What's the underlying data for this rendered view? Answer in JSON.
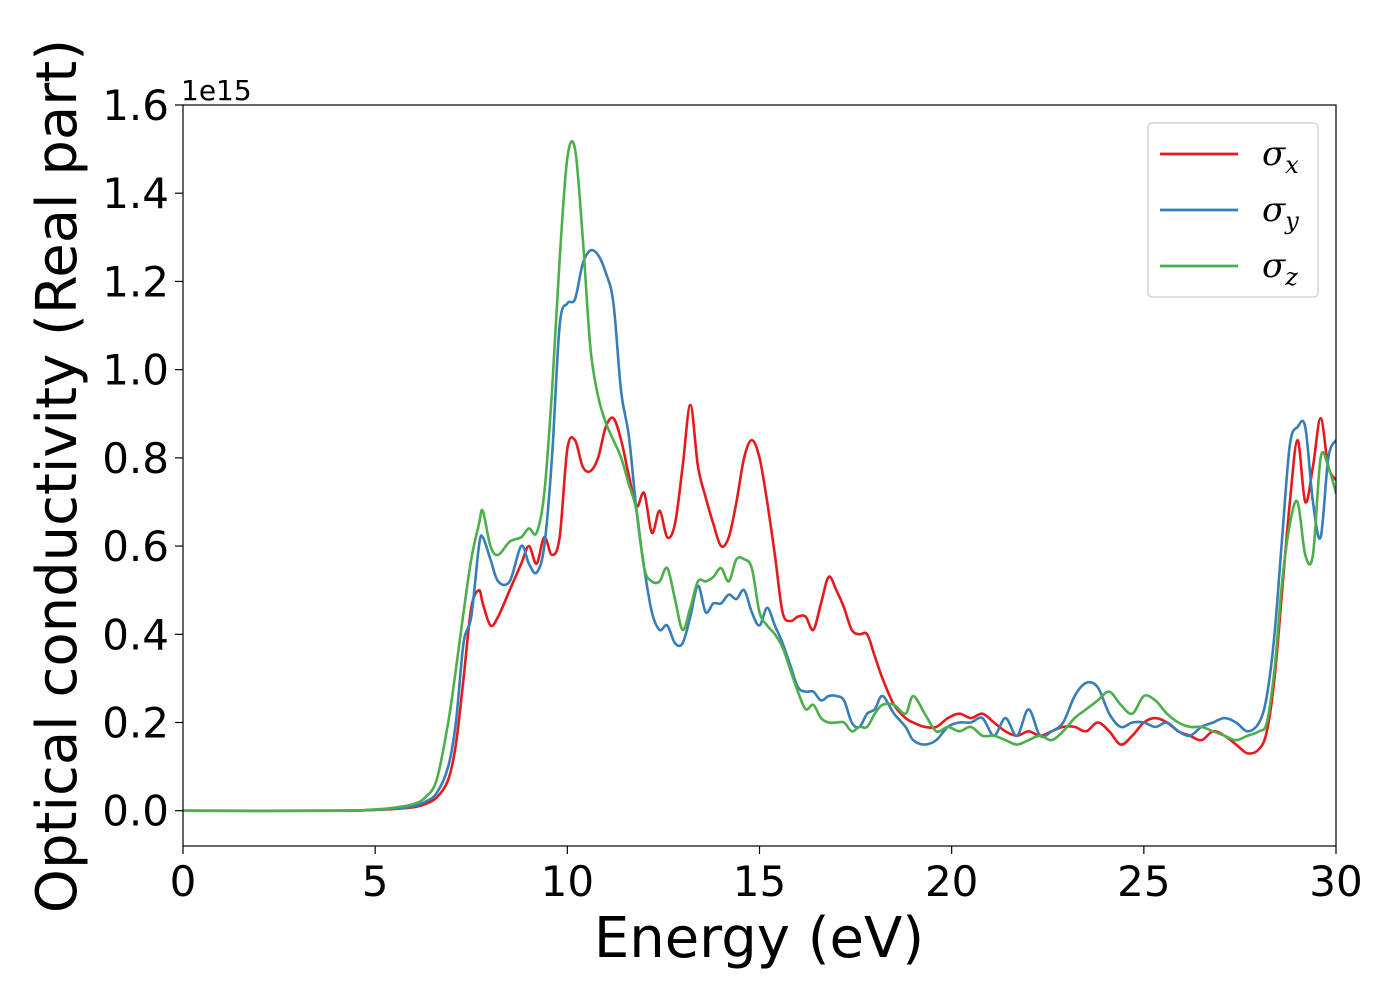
{
  "chart_data": {
    "type": "line",
    "title": "",
    "xlabel": "Energy (eV)",
    "ylabel": "Optical conductivity (Real part)",
    "y_offset_text": "1e15",
    "y_scale": 1000000000000000.0,
    "xlim": [
      0,
      30
    ],
    "ylim": [
      -0.08,
      1.6
    ],
    "x_ticks": [
      0,
      5,
      10,
      15,
      20,
      25,
      30
    ],
    "x_tick_labels": [
      "0",
      "5",
      "10",
      "15",
      "20",
      "25",
      "30"
    ],
    "y_ticks": [
      0.0,
      0.2,
      0.4,
      0.6,
      0.8,
      1.0,
      1.2,
      1.4,
      1.6
    ],
    "y_tick_labels": [
      "0.0",
      "0.2",
      "0.4",
      "0.6",
      "0.8",
      "1.0",
      "1.2",
      "1.4",
      "1.6"
    ],
    "grid": false,
    "legend_position": "top-right",
    "series": [
      {
        "name": "σx",
        "symbol": "σ",
        "subscript": "x",
        "color": "#e41a1c",
        "x": [
          0,
          4,
          5,
          5.5,
          6,
          6.3,
          6.6,
          6.9,
          7.1,
          7.3,
          7.5,
          7.7,
          7.8,
          8.0,
          8.2,
          8.5,
          8.8,
          9.0,
          9.2,
          9.4,
          9.6,
          9.8,
          10.0,
          10.2,
          10.4,
          10.6,
          10.8,
          11.0,
          11.2,
          11.4,
          11.6,
          11.8,
          12.0,
          12.2,
          12.4,
          12.6,
          12.8,
          13.0,
          13.2,
          13.4,
          13.6,
          13.8,
          14.0,
          14.2,
          14.4,
          14.6,
          14.8,
          15.0,
          15.2,
          15.4,
          15.6,
          15.8,
          16.0,
          16.2,
          16.4,
          16.6,
          16.8,
          17.0,
          17.2,
          17.4,
          17.6,
          17.8,
          18.0,
          18.2,
          18.5,
          18.8,
          19.0,
          19.3,
          19.6,
          19.9,
          20.2,
          20.5,
          20.8,
          21.1,
          21.4,
          21.7,
          22.0,
          22.3,
          22.6,
          22.9,
          23.2,
          23.5,
          23.8,
          24.1,
          24.4,
          24.7,
          25.0,
          25.3,
          25.6,
          25.9,
          26.2,
          26.5,
          26.8,
          27.1,
          27.4,
          27.7,
          28.0,
          28.2,
          28.4,
          28.6,
          28.8,
          29.0,
          29.2,
          29.4,
          29.6,
          29.8,
          30.0
        ],
        "y": [
          0.0,
          0.0,
          0.002,
          0.004,
          0.008,
          0.015,
          0.03,
          0.07,
          0.15,
          0.3,
          0.46,
          0.5,
          0.47,
          0.42,
          0.44,
          0.5,
          0.56,
          0.6,
          0.56,
          0.62,
          0.58,
          0.62,
          0.82,
          0.84,
          0.78,
          0.77,
          0.8,
          0.87,
          0.89,
          0.84,
          0.76,
          0.69,
          0.72,
          0.63,
          0.68,
          0.62,
          0.65,
          0.78,
          0.92,
          0.78,
          0.71,
          0.65,
          0.6,
          0.62,
          0.7,
          0.8,
          0.84,
          0.8,
          0.7,
          0.58,
          0.45,
          0.43,
          0.44,
          0.44,
          0.41,
          0.47,
          0.53,
          0.5,
          0.46,
          0.41,
          0.4,
          0.4,
          0.35,
          0.3,
          0.24,
          0.21,
          0.2,
          0.19,
          0.19,
          0.21,
          0.22,
          0.21,
          0.22,
          0.2,
          0.18,
          0.17,
          0.18,
          0.17,
          0.18,
          0.19,
          0.19,
          0.18,
          0.2,
          0.18,
          0.15,
          0.17,
          0.2,
          0.21,
          0.2,
          0.18,
          0.17,
          0.16,
          0.18,
          0.17,
          0.15,
          0.13,
          0.14,
          0.18,
          0.3,
          0.5,
          0.7,
          0.84,
          0.7,
          0.78,
          0.89,
          0.78,
          0.75
        ]
      },
      {
        "name": "σy",
        "symbol": "σ",
        "subscript": "y",
        "color": "#377eb8",
        "x": [
          0,
          4,
          5,
          5.5,
          6,
          6.3,
          6.6,
          6.9,
          7.1,
          7.3,
          7.5,
          7.7,
          7.8,
          8.0,
          8.2,
          8.5,
          8.8,
          9.0,
          9.2,
          9.4,
          9.6,
          9.8,
          10.0,
          10.2,
          10.4,
          10.6,
          10.8,
          11.0,
          11.2,
          11.4,
          11.6,
          11.8,
          12.0,
          12.2,
          12.4,
          12.6,
          12.8,
          13.0,
          13.2,
          13.4,
          13.6,
          13.8,
          14.0,
          14.2,
          14.4,
          14.6,
          14.8,
          15.0,
          15.2,
          15.4,
          15.6,
          15.8,
          16.0,
          16.2,
          16.4,
          16.6,
          16.8,
          17.0,
          17.2,
          17.4,
          17.6,
          17.8,
          18.0,
          18.2,
          18.5,
          18.8,
          19.0,
          19.3,
          19.6,
          19.9,
          20.2,
          20.5,
          20.8,
          21.1,
          21.4,
          21.7,
          22.0,
          22.3,
          22.6,
          22.9,
          23.2,
          23.5,
          23.8,
          24.1,
          24.4,
          24.7,
          25.0,
          25.3,
          25.6,
          25.9,
          26.2,
          26.5,
          26.8,
          27.1,
          27.4,
          27.7,
          28.0,
          28.2,
          28.4,
          28.6,
          28.8,
          29.0,
          29.2,
          29.4,
          29.6,
          29.8,
          30.0
        ],
        "y": [
          0.0,
          0.0,
          0.002,
          0.005,
          0.01,
          0.02,
          0.04,
          0.1,
          0.2,
          0.38,
          0.44,
          0.6,
          0.62,
          0.57,
          0.52,
          0.52,
          0.6,
          0.56,
          0.54,
          0.6,
          0.8,
          1.1,
          1.15,
          1.16,
          1.24,
          1.27,
          1.26,
          1.22,
          1.15,
          0.95,
          0.85,
          0.68,
          0.55,
          0.45,
          0.41,
          0.42,
          0.38,
          0.38,
          0.44,
          0.51,
          0.45,
          0.47,
          0.47,
          0.49,
          0.48,
          0.5,
          0.45,
          0.42,
          0.46,
          0.42,
          0.38,
          0.33,
          0.28,
          0.27,
          0.27,
          0.25,
          0.26,
          0.26,
          0.25,
          0.2,
          0.19,
          0.22,
          0.23,
          0.26,
          0.22,
          0.19,
          0.16,
          0.15,
          0.16,
          0.19,
          0.2,
          0.2,
          0.21,
          0.17,
          0.21,
          0.17,
          0.23,
          0.17,
          0.18,
          0.2,
          0.26,
          0.29,
          0.28,
          0.22,
          0.19,
          0.2,
          0.2,
          0.19,
          0.2,
          0.18,
          0.17,
          0.19,
          0.2,
          0.21,
          0.2,
          0.18,
          0.2,
          0.26,
          0.4,
          0.62,
          0.83,
          0.87,
          0.87,
          0.7,
          0.62,
          0.8,
          0.84
        ]
      },
      {
        "name": "σz",
        "symbol": "σ",
        "subscript": "z",
        "color": "#4daf4a",
        "x": [
          0,
          4,
          5,
          5.5,
          6,
          6.3,
          6.6,
          6.9,
          7.1,
          7.3,
          7.5,
          7.7,
          7.8,
          8.0,
          8.2,
          8.5,
          8.8,
          9.0,
          9.2,
          9.4,
          9.6,
          9.8,
          10.0,
          10.2,
          10.4,
          10.6,
          10.8,
          11.0,
          11.2,
          11.4,
          11.6,
          11.8,
          12.0,
          12.2,
          12.4,
          12.6,
          12.8,
          13.0,
          13.2,
          13.4,
          13.6,
          13.8,
          14.0,
          14.2,
          14.4,
          14.6,
          14.8,
          15.0,
          15.2,
          15.4,
          15.6,
          15.8,
          16.0,
          16.2,
          16.4,
          16.6,
          16.8,
          17.0,
          17.2,
          17.4,
          17.6,
          17.8,
          18.0,
          18.2,
          18.5,
          18.8,
          19.0,
          19.3,
          19.6,
          19.9,
          20.2,
          20.5,
          20.8,
          21.1,
          21.4,
          21.7,
          22.0,
          22.3,
          22.6,
          22.9,
          23.2,
          23.5,
          23.8,
          24.1,
          24.4,
          24.7,
          25.0,
          25.3,
          25.6,
          25.9,
          26.2,
          26.5,
          26.8,
          27.1,
          27.4,
          27.7,
          28.0,
          28.2,
          28.4,
          28.6,
          28.8,
          29.0,
          29.2,
          29.4,
          29.6,
          29.8,
          30.0
        ],
        "y": [
          0.0,
          0.0,
          0.003,
          0.007,
          0.015,
          0.03,
          0.07,
          0.2,
          0.32,
          0.45,
          0.57,
          0.65,
          0.68,
          0.6,
          0.58,
          0.61,
          0.62,
          0.64,
          0.63,
          0.72,
          0.95,
          1.25,
          1.48,
          1.5,
          1.3,
          1.05,
          0.94,
          0.88,
          0.84,
          0.8,
          0.74,
          0.68,
          0.55,
          0.52,
          0.52,
          0.55,
          0.48,
          0.41,
          0.46,
          0.52,
          0.52,
          0.53,
          0.55,
          0.52,
          0.57,
          0.57,
          0.55,
          0.45,
          0.42,
          0.4,
          0.37,
          0.32,
          0.27,
          0.23,
          0.24,
          0.21,
          0.2,
          0.2,
          0.2,
          0.18,
          0.19,
          0.19,
          0.22,
          0.24,
          0.24,
          0.22,
          0.26,
          0.22,
          0.18,
          0.19,
          0.18,
          0.19,
          0.17,
          0.17,
          0.16,
          0.15,
          0.16,
          0.17,
          0.16,
          0.18,
          0.21,
          0.23,
          0.25,
          0.27,
          0.24,
          0.22,
          0.26,
          0.25,
          0.22,
          0.2,
          0.19,
          0.19,
          0.18,
          0.17,
          0.16,
          0.17,
          0.18,
          0.2,
          0.32,
          0.52,
          0.65,
          0.7,
          0.58,
          0.58,
          0.8,
          0.78,
          0.72
        ]
      }
    ]
  }
}
